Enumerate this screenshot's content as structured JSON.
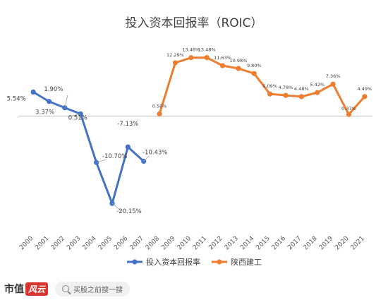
{
  "chart_data": {
    "type": "line",
    "title": "投入资本回报率（ROIC）",
    "categories": [
      "2000",
      "2001",
      "2002",
      "2003",
      "2004",
      "2005",
      "2006",
      "2007",
      "2008",
      "2009",
      "2010",
      "2011",
      "2012",
      "2013",
      "2014",
      "2015",
      "2016",
      "2017",
      "2018",
      "2019",
      "2020",
      "2021"
    ],
    "ylim": [
      -25,
      17
    ],
    "series": [
      {
        "name": "投入资本回报率",
        "color": "#4472c4",
        "values": [
          5.54,
          3.37,
          1.9,
          0.51,
          -10.7,
          -20.15,
          -7.13,
          -10.43,
          null,
          null,
          null,
          null,
          null,
          null,
          null,
          null,
          null,
          null,
          null,
          null,
          null,
          null
        ],
        "labels": [
          "5.54%",
          "3.37%",
          "1.90%",
          "0.51%",
          "-10.70%",
          "-20.15%",
          "-7.13%",
          "-10.43%",
          "",
          "",
          "",
          "",
          "",
          "",
          "",
          "",
          "",
          "",
          "",
          "",
          "",
          ""
        ]
      },
      {
        "name": "陕西建工",
        "color": "#ed7d31",
        "values": [
          null,
          null,
          null,
          null,
          null,
          null,
          null,
          null,
          0.5,
          12.29,
          13.46,
          13.48,
          11.63,
          10.98,
          9.8,
          5.09,
          4.78,
          4.48,
          5.42,
          7.36,
          0.37,
          4.49
        ],
        "labels": [
          "",
          "",
          "",
          "",
          "",
          "",
          "",
          "",
          "0.50%",
          "12.29%",
          "13.46%",
          "13.48%",
          "11.63%",
          "10.98%",
          "9.80%",
          "5.09%",
          "4.78%",
          "4.48%",
          "5.42%",
          "7.36%",
          "0.37%",
          "4.49%"
        ]
      }
    ],
    "legend": "bottom",
    "grid": false
  },
  "footer": {
    "brand": "市值",
    "brand_badge": "风云",
    "search_text": "买股之前搜一搜"
  }
}
